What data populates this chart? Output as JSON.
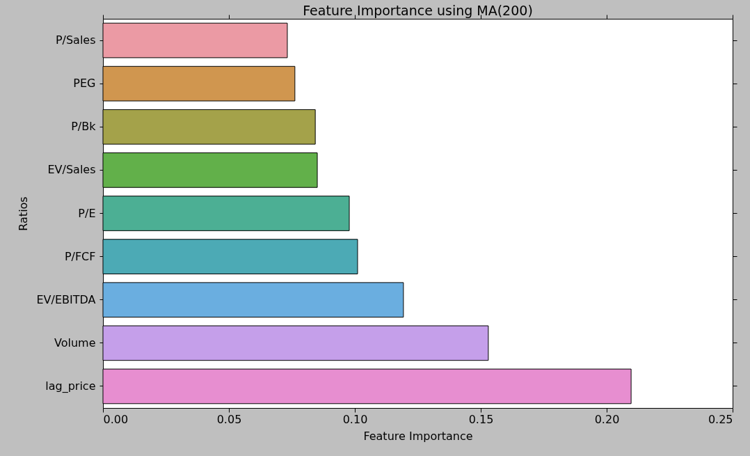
{
  "chart_data": {
    "type": "bar",
    "orientation": "horizontal",
    "title": "Feature Importance using MA(200)",
    "xlabel": "Feature Importance",
    "ylabel": "Ratios",
    "categories": [
      "P/Sales",
      "PEG",
      "P/Bk",
      "EV/Sales",
      "P/E",
      "P/FCF",
      "EV/EBITDA",
      "Volume",
      "lag_price"
    ],
    "values": [
      0.0732,
      0.0762,
      0.0843,
      0.0851,
      0.0978,
      0.1011,
      0.1193,
      0.153,
      0.2097
    ],
    "colors": [
      "#eb9aa4",
      "#d0964f",
      "#a4a24a",
      "#62b04a",
      "#4caf94",
      "#4caab5",
      "#6aaee0",
      "#c59fea",
      "#e78ed0"
    ],
    "xlim": [
      0,
      0.25
    ],
    "xticks": [
      {
        "value": 0,
        "label": "0.00"
      },
      {
        "value": 0.05,
        "label": "0.05"
      },
      {
        "value": 0.1,
        "label": "0.10"
      },
      {
        "value": 0.15,
        "label": "0.15"
      },
      {
        "value": 0.2,
        "label": "0.20"
      },
      {
        "value": 0.25,
        "label": "0.25"
      }
    ],
    "grid": false
  }
}
